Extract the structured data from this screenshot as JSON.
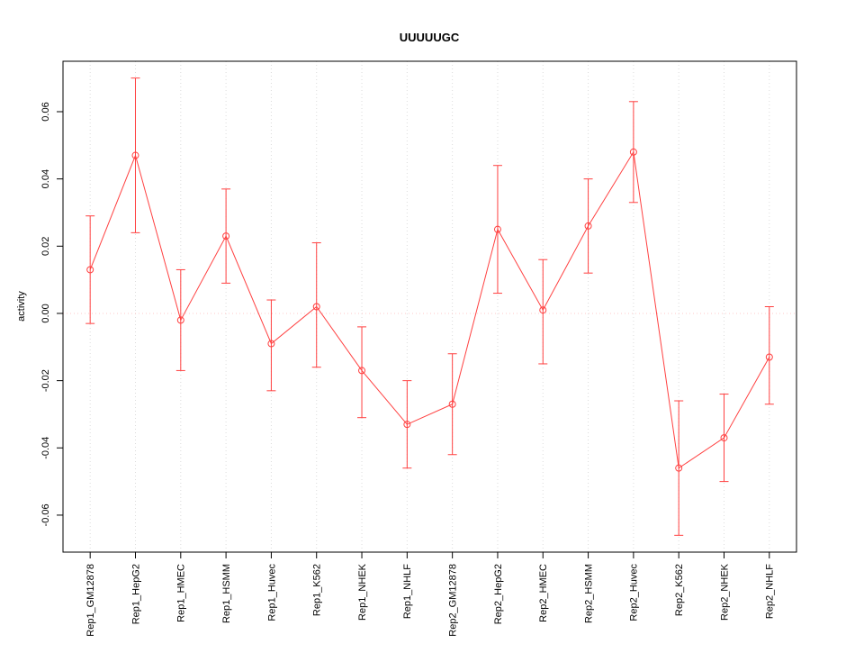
{
  "chart_data": {
    "type": "line",
    "title": "UUUUUGC",
    "xlabel": "",
    "ylabel": "activity",
    "categories": [
      "Rep1_GM12878",
      "Rep1_HepG2",
      "Rep1_HMEC",
      "Rep1_HSMM",
      "Rep1_Huvec",
      "Rep1_K562",
      "Rep1_NHEK",
      "Rep1_NHLF",
      "Rep2_GM12878",
      "Rep2_HepG2",
      "Rep2_HMEC",
      "Rep2_HSMM",
      "Rep2_Huvec",
      "Rep2_K562",
      "Rep2_NHEK",
      "Rep2_NHLF"
    ],
    "series": [
      {
        "name": "activity",
        "values": [
          0.013,
          0.047,
          -0.002,
          0.023,
          -0.009,
          0.002,
          -0.017,
          -0.033,
          -0.027,
          0.025,
          0.001,
          0.026,
          0.048,
          -0.046,
          -0.037,
          -0.013
        ],
        "lower": [
          -0.003,
          0.024,
          -0.017,
          0.009,
          -0.023,
          -0.016,
          -0.031,
          -0.046,
          -0.042,
          0.006,
          -0.015,
          0.012,
          0.033,
          -0.066,
          -0.05,
          -0.027
        ],
        "upper": [
          0.029,
          0.07,
          0.013,
          0.037,
          0.004,
          0.021,
          -0.004,
          -0.02,
          -0.012,
          0.044,
          0.016,
          0.04,
          0.063,
          -0.026,
          -0.024,
          0.002
        ]
      }
    ],
    "yticks": [
      -0.06,
      -0.04,
      -0.02,
      0.0,
      0.02,
      0.04,
      0.06
    ],
    "ylim": [
      -0.071,
      0.075
    ],
    "grid": "vertical-dotted",
    "zero_line": true,
    "legend_position": "none",
    "marker": "open-circle",
    "error_bars": true,
    "colors": {
      "series": "#ff4040",
      "grid": "#dcdcdc",
      "zero_line": "#ffc8c8",
      "axis": "#000000",
      "background": "#ffffff"
    }
  }
}
